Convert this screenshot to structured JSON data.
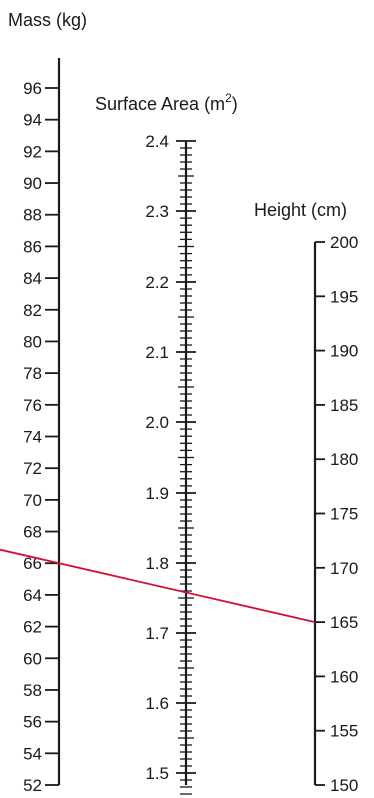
{
  "chart_data": {
    "type": "nomogram",
    "axes": [
      {
        "id": "mass",
        "title": "Mass (kg)",
        "min": 52,
        "max": 96,
        "labeled_ticks": [
          52,
          54,
          56,
          58,
          60,
          62,
          64,
          66,
          68,
          70,
          72,
          74,
          76,
          78,
          80,
          82,
          84,
          86,
          88,
          90,
          92,
          94,
          96
        ],
        "minor_step": 0,
        "label_side": "left"
      },
      {
        "id": "surface_area",
        "title_text": "Surface Area (m",
        "title_superscript": "2",
        "title_suffix": ")",
        "min": 1.47,
        "max": 2.4,
        "labeled_ticks": [
          "1.5",
          "1.6",
          "1.7",
          "1.8",
          "1.9",
          "2.0",
          "2.1",
          "2.2",
          "2.3",
          "2.4"
        ],
        "minor_step": 0.01,
        "label_side": "left"
      },
      {
        "id": "height",
        "title": "Height (cm)",
        "min": 150,
        "max": 200,
        "labeled_ticks": [
          150,
          155,
          160,
          165,
          170,
          175,
          180,
          185,
          190,
          195,
          200
        ],
        "minor_step": 0,
        "label_side": "right"
      }
    ],
    "reading_line": {
      "mass": 66,
      "height": 165,
      "surface_area": 1.74,
      "color": "#d0103a"
    }
  }
}
